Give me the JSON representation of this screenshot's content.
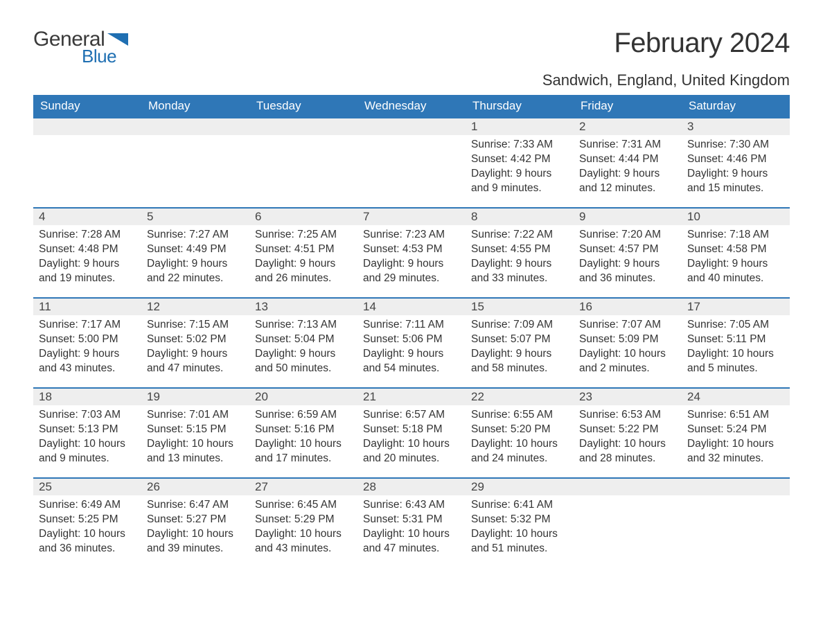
{
  "logo": {
    "general": "General",
    "blue": "Blue",
    "flag_color": "#1f6fb2"
  },
  "title": "February 2024",
  "location": "Sandwich, England, United Kingdom",
  "colors": {
    "header_bg": "#2f77b7",
    "header_text": "#ffffff",
    "row_border": "#2f77b7",
    "daynum_bg": "#eeeeee",
    "text": "#333333",
    "background": "#ffffff"
  },
  "fonts": {
    "title_size_pt": 30,
    "location_size_pt": 16,
    "header_size_pt": 13,
    "daynum_size_pt": 13,
    "body_size_pt": 12
  },
  "day_headers": [
    "Sunday",
    "Monday",
    "Tuesday",
    "Wednesday",
    "Thursday",
    "Friday",
    "Saturday"
  ],
  "weeks": [
    [
      null,
      null,
      null,
      null,
      {
        "n": "1",
        "sunrise": "7:33 AM",
        "sunset": "4:42 PM",
        "daylight": "9 hours and 9 minutes."
      },
      {
        "n": "2",
        "sunrise": "7:31 AM",
        "sunset": "4:44 PM",
        "daylight": "9 hours and 12 minutes."
      },
      {
        "n": "3",
        "sunrise": "7:30 AM",
        "sunset": "4:46 PM",
        "daylight": "9 hours and 15 minutes."
      }
    ],
    [
      {
        "n": "4",
        "sunrise": "7:28 AM",
        "sunset": "4:48 PM",
        "daylight": "9 hours and 19 minutes."
      },
      {
        "n": "5",
        "sunrise": "7:27 AM",
        "sunset": "4:49 PM",
        "daylight": "9 hours and 22 minutes."
      },
      {
        "n": "6",
        "sunrise": "7:25 AM",
        "sunset": "4:51 PM",
        "daylight": "9 hours and 26 minutes."
      },
      {
        "n": "7",
        "sunrise": "7:23 AM",
        "sunset": "4:53 PM",
        "daylight": "9 hours and 29 minutes."
      },
      {
        "n": "8",
        "sunrise": "7:22 AM",
        "sunset": "4:55 PM",
        "daylight": "9 hours and 33 minutes."
      },
      {
        "n": "9",
        "sunrise": "7:20 AM",
        "sunset": "4:57 PM",
        "daylight": "9 hours and 36 minutes."
      },
      {
        "n": "10",
        "sunrise": "7:18 AM",
        "sunset": "4:58 PM",
        "daylight": "9 hours and 40 minutes."
      }
    ],
    [
      {
        "n": "11",
        "sunrise": "7:17 AM",
        "sunset": "5:00 PM",
        "daylight": "9 hours and 43 minutes."
      },
      {
        "n": "12",
        "sunrise": "7:15 AM",
        "sunset": "5:02 PM",
        "daylight": "9 hours and 47 minutes."
      },
      {
        "n": "13",
        "sunrise": "7:13 AM",
        "sunset": "5:04 PM",
        "daylight": "9 hours and 50 minutes."
      },
      {
        "n": "14",
        "sunrise": "7:11 AM",
        "sunset": "5:06 PM",
        "daylight": "9 hours and 54 minutes."
      },
      {
        "n": "15",
        "sunrise": "7:09 AM",
        "sunset": "5:07 PM",
        "daylight": "9 hours and 58 minutes."
      },
      {
        "n": "16",
        "sunrise": "7:07 AM",
        "sunset": "5:09 PM",
        "daylight": "10 hours and 2 minutes."
      },
      {
        "n": "17",
        "sunrise": "7:05 AM",
        "sunset": "5:11 PM",
        "daylight": "10 hours and 5 minutes."
      }
    ],
    [
      {
        "n": "18",
        "sunrise": "7:03 AM",
        "sunset": "5:13 PM",
        "daylight": "10 hours and 9 minutes."
      },
      {
        "n": "19",
        "sunrise": "7:01 AM",
        "sunset": "5:15 PM",
        "daylight": "10 hours and 13 minutes."
      },
      {
        "n": "20",
        "sunrise": "6:59 AM",
        "sunset": "5:16 PM",
        "daylight": "10 hours and 17 minutes."
      },
      {
        "n": "21",
        "sunrise": "6:57 AM",
        "sunset": "5:18 PM",
        "daylight": "10 hours and 20 minutes."
      },
      {
        "n": "22",
        "sunrise": "6:55 AM",
        "sunset": "5:20 PM",
        "daylight": "10 hours and 24 minutes."
      },
      {
        "n": "23",
        "sunrise": "6:53 AM",
        "sunset": "5:22 PM",
        "daylight": "10 hours and 28 minutes."
      },
      {
        "n": "24",
        "sunrise": "6:51 AM",
        "sunset": "5:24 PM",
        "daylight": "10 hours and 32 minutes."
      }
    ],
    [
      {
        "n": "25",
        "sunrise": "6:49 AM",
        "sunset": "5:25 PM",
        "daylight": "10 hours and 36 minutes."
      },
      {
        "n": "26",
        "sunrise": "6:47 AM",
        "sunset": "5:27 PM",
        "daylight": "10 hours and 39 minutes."
      },
      {
        "n": "27",
        "sunrise": "6:45 AM",
        "sunset": "5:29 PM",
        "daylight": "10 hours and 43 minutes."
      },
      {
        "n": "28",
        "sunrise": "6:43 AM",
        "sunset": "5:31 PM",
        "daylight": "10 hours and 47 minutes."
      },
      {
        "n": "29",
        "sunrise": "6:41 AM",
        "sunset": "5:32 PM",
        "daylight": "10 hours and 51 minutes."
      },
      null,
      null
    ]
  ],
  "labels": {
    "sunrise": "Sunrise: ",
    "sunset": "Sunset: ",
    "daylight": "Daylight: "
  }
}
